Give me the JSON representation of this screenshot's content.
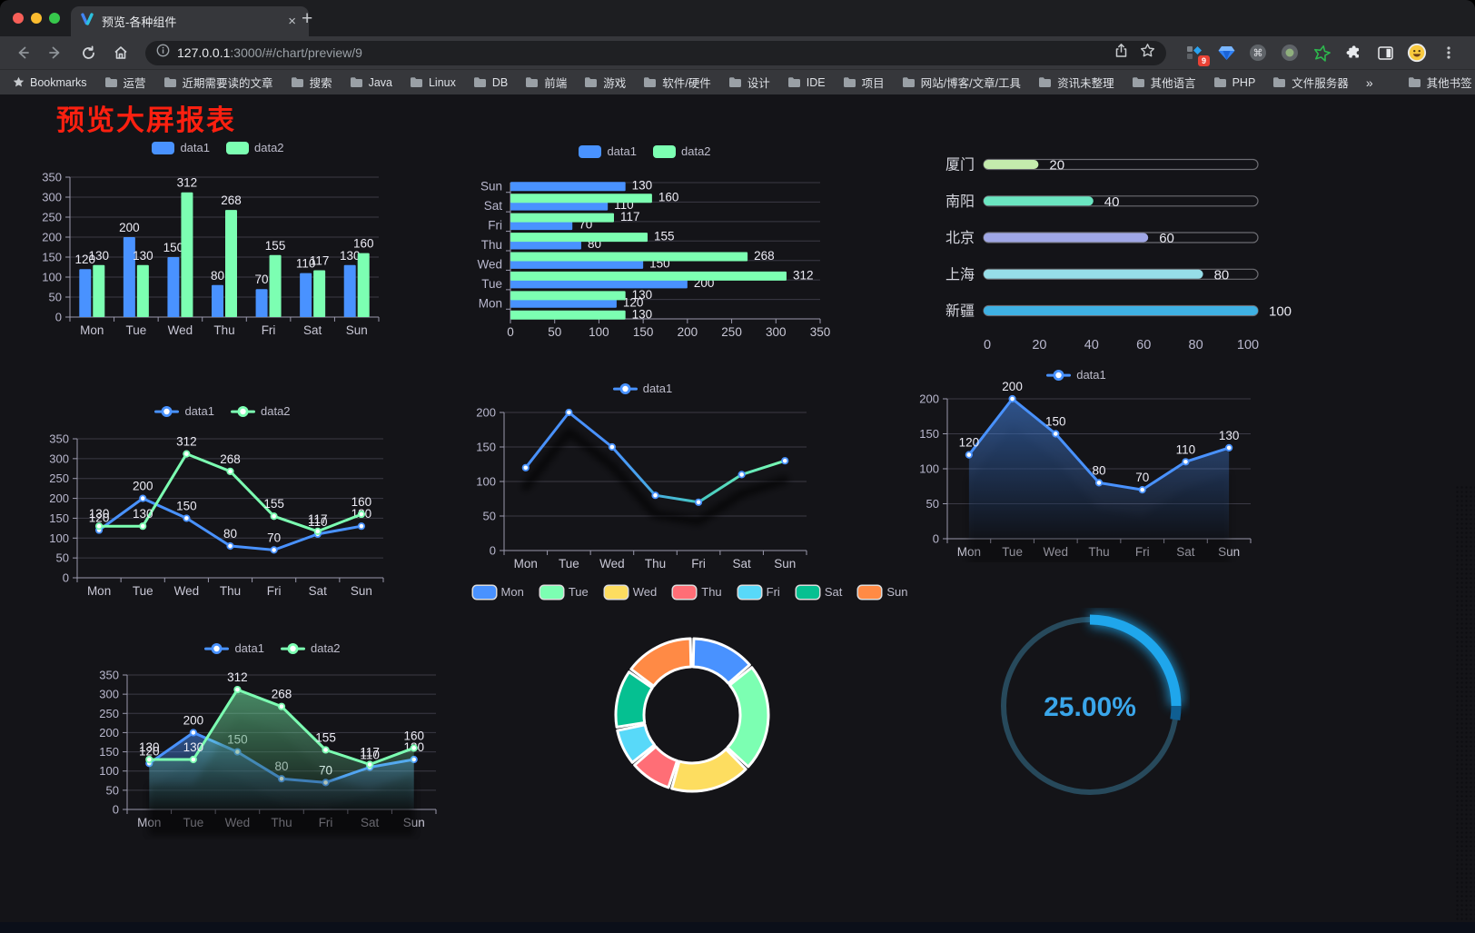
{
  "browser": {
    "tab_title": "预览-各种组件",
    "tab_close": "×",
    "new_tab": "+",
    "url_host": "127.0.0.1",
    "url_rest": ":3000/#/chart/preview/9",
    "extension_badge": "9",
    "bookmarks_label": "Bookmarks",
    "bookmark_folders": [
      "运营",
      "近期需要读的文章",
      "搜索",
      "Java",
      "Linux",
      "DB",
      "前端",
      "游戏",
      "软件/硬件",
      "设计",
      "IDE",
      "项目",
      "网站/博客/文章/工具",
      "资讯未整理",
      "其他语言",
      "PHP",
      "文件服务器"
    ],
    "bookmarks_overflow": "»",
    "other_bookmarks": "其他书签"
  },
  "page": {
    "title": "预览大屏报表",
    "title_color": "#fb2010"
  },
  "palette": [
    "#4992ff",
    "#7cffb2",
    "#fddd60",
    "#ff6e76",
    "#58d9f9",
    "#05c091",
    "#ff8a45"
  ],
  "chart_data": [
    {
      "type": "bar",
      "categories": [
        "Mon",
        "Tue",
        "Wed",
        "Thu",
        "Fri",
        "Sat",
        "Sun"
      ],
      "series": [
        {
          "name": "data1",
          "color": "#4992ff",
          "values": [
            120,
            200,
            150,
            80,
            70,
            110,
            130
          ]
        },
        {
          "name": "data2",
          "color": "#7cffb2",
          "values": [
            130,
            130,
            312,
            268,
            155,
            117,
            160
          ]
        }
      ],
      "ylim": [
        0,
        350
      ],
      "ystep": 50,
      "legend": "rect",
      "grid": true
    },
    {
      "type": "hbar",
      "categories": [
        "Mon",
        "Tue",
        "Wed",
        "Thu",
        "Fri",
        "Sat",
        "Sun"
      ],
      "series": [
        {
          "name": "data1",
          "color": "#4992ff",
          "values": [
            120,
            200,
            150,
            80,
            70,
            110,
            130
          ]
        },
        {
          "name": "data2",
          "color": "#7cffb2",
          "values": [
            130,
            130,
            312,
            268,
            155,
            117,
            160
          ]
        }
      ],
      "xlim": [
        0,
        350
      ],
      "xstep": 50,
      "legend": "rect",
      "grid": true
    },
    {
      "type": "progress",
      "items": [
        {
          "label": "厦门",
          "value": 20,
          "color": "#c4ebad"
        },
        {
          "label": "南阳",
          "value": 40,
          "color": "#6be6c1"
        },
        {
          "label": "北京",
          "value": 60,
          "color": "#a0a7e6"
        },
        {
          "label": "上海",
          "value": 80,
          "color": "#96dee8"
        },
        {
          "label": "新疆",
          "value": 100,
          "color": "#3fb1e3"
        }
      ],
      "xticks": [
        0,
        20,
        40,
        60,
        80,
        100
      ],
      "max": 100
    },
    {
      "type": "line",
      "categories": [
        "Mon",
        "Tue",
        "Wed",
        "Thu",
        "Fri",
        "Sat",
        "Sun"
      ],
      "series": [
        {
          "name": "data1",
          "color": "#4992ff",
          "values": [
            120,
            200,
            150,
            80,
            70,
            110,
            130
          ]
        },
        {
          "name": "data2",
          "color": "#7cffb2",
          "values": [
            130,
            130,
            312,
            268,
            155,
            117,
            160
          ]
        }
      ],
      "ylim": [
        0,
        350
      ],
      "ystep": 50,
      "legend": "line",
      "labels": true,
      "grid": true
    },
    {
      "type": "gradient-line",
      "categories": [
        "Mon",
        "Tue",
        "Wed",
        "Thu",
        "Fri",
        "Sat",
        "Sun"
      ],
      "series": [
        {
          "name": "data1",
          "color": "#4992ff",
          "gradient": [
            "#4992ff",
            "#4992ff",
            "#45c8c2",
            "#7cffb2"
          ],
          "values": [
            120,
            200,
            150,
            80,
            70,
            110,
            130
          ]
        }
      ],
      "ylim": [
        0,
        200
      ],
      "ystep": 50,
      "legend": "line",
      "labels": false,
      "shadow": true,
      "grid": true
    },
    {
      "type": "area-line",
      "categories": [
        "Mon",
        "Tue",
        "Wed",
        "Thu",
        "Fri",
        "Sat",
        "Sun"
      ],
      "series": [
        {
          "name": "data1",
          "color": "#4992ff",
          "area": true,
          "values": [
            120,
            200,
            150,
            80,
            70,
            110,
            130
          ]
        }
      ],
      "ylim": [
        0,
        200
      ],
      "ystep": 50,
      "legend": "line",
      "labels": true,
      "grid": true
    },
    {
      "type": "area-line",
      "categories": [
        "Mon",
        "Tue",
        "Wed",
        "Thu",
        "Fri",
        "Sat",
        "Sun"
      ],
      "series": [
        {
          "name": "data1",
          "color": "#4992ff",
          "area": true,
          "values": [
            120,
            200,
            150,
            80,
            70,
            110,
            130
          ]
        },
        {
          "name": "data2",
          "color": "#7cffb2",
          "area": true,
          "values": [
            130,
            130,
            312,
            268,
            155,
            117,
            160
          ]
        }
      ],
      "ylim": [
        0,
        350
      ],
      "ystep": 50,
      "legend": "line",
      "labels": true,
      "grid": true
    },
    {
      "type": "donut",
      "categories": [
        "Mon",
        "Tue",
        "Wed",
        "Thu",
        "Fri",
        "Sat",
        "Sun"
      ],
      "values": [
        120,
        200,
        150,
        80,
        70,
        110,
        130
      ],
      "colors": [
        "#4992ff",
        "#7cffb2",
        "#fddd60",
        "#ff6e76",
        "#58d9f9",
        "#05c091",
        "#ff8a45"
      ],
      "legend": "pie",
      "border_color": "#ffffff"
    },
    {
      "type": "gauge",
      "value": 25,
      "label": "25.00%",
      "progress_color": "#1fa6ec",
      "track_color": "#27495b",
      "text_color": "#3aa6ea"
    }
  ]
}
